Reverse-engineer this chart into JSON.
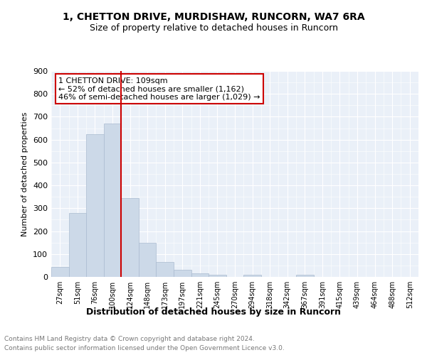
{
  "title1": "1, CHETTON DRIVE, MURDISHAW, RUNCORN, WA7 6RA",
  "title2": "Size of property relative to detached houses in Runcorn",
  "xlabel": "Distribution of detached houses by size in Runcorn",
  "ylabel": "Number of detached properties",
  "footer1": "Contains HM Land Registry data © Crown copyright and database right 2024.",
  "footer2": "Contains public sector information licensed under the Open Government Licence v3.0.",
  "bar_color": "#ccd9e8",
  "bar_edgecolor": "#aabbd0",
  "bg_color": "#eaf0f8",
  "property_line_color": "#cc0000",
  "annotation_text1": "1 CHETTON DRIVE: 109sqm",
  "annotation_text2": "← 52% of detached houses are smaller (1,162)",
  "annotation_text3": "46% of semi-detached houses are larger (1,029) →",
  "annotation_box_color": "#cc0000",
  "categories": [
    "27sqm",
    "51sqm",
    "76sqm",
    "100sqm",
    "124sqm",
    "148sqm",
    "173sqm",
    "197sqm",
    "221sqm",
    "245sqm",
    "270sqm",
    "294sqm",
    "318sqm",
    "342sqm",
    "367sqm",
    "391sqm",
    "415sqm",
    "439sqm",
    "464sqm",
    "488sqm",
    "512sqm"
  ],
  "values": [
    45,
    280,
    625,
    670,
    345,
    150,
    65,
    30,
    15,
    10,
    0,
    10,
    0,
    0,
    10,
    0,
    0,
    0,
    0,
    0,
    0
  ],
  "ylim": [
    0,
    900
  ],
  "yticks": [
    0,
    100,
    200,
    300,
    400,
    500,
    600,
    700,
    800,
    900
  ],
  "red_line_index": 3.5
}
